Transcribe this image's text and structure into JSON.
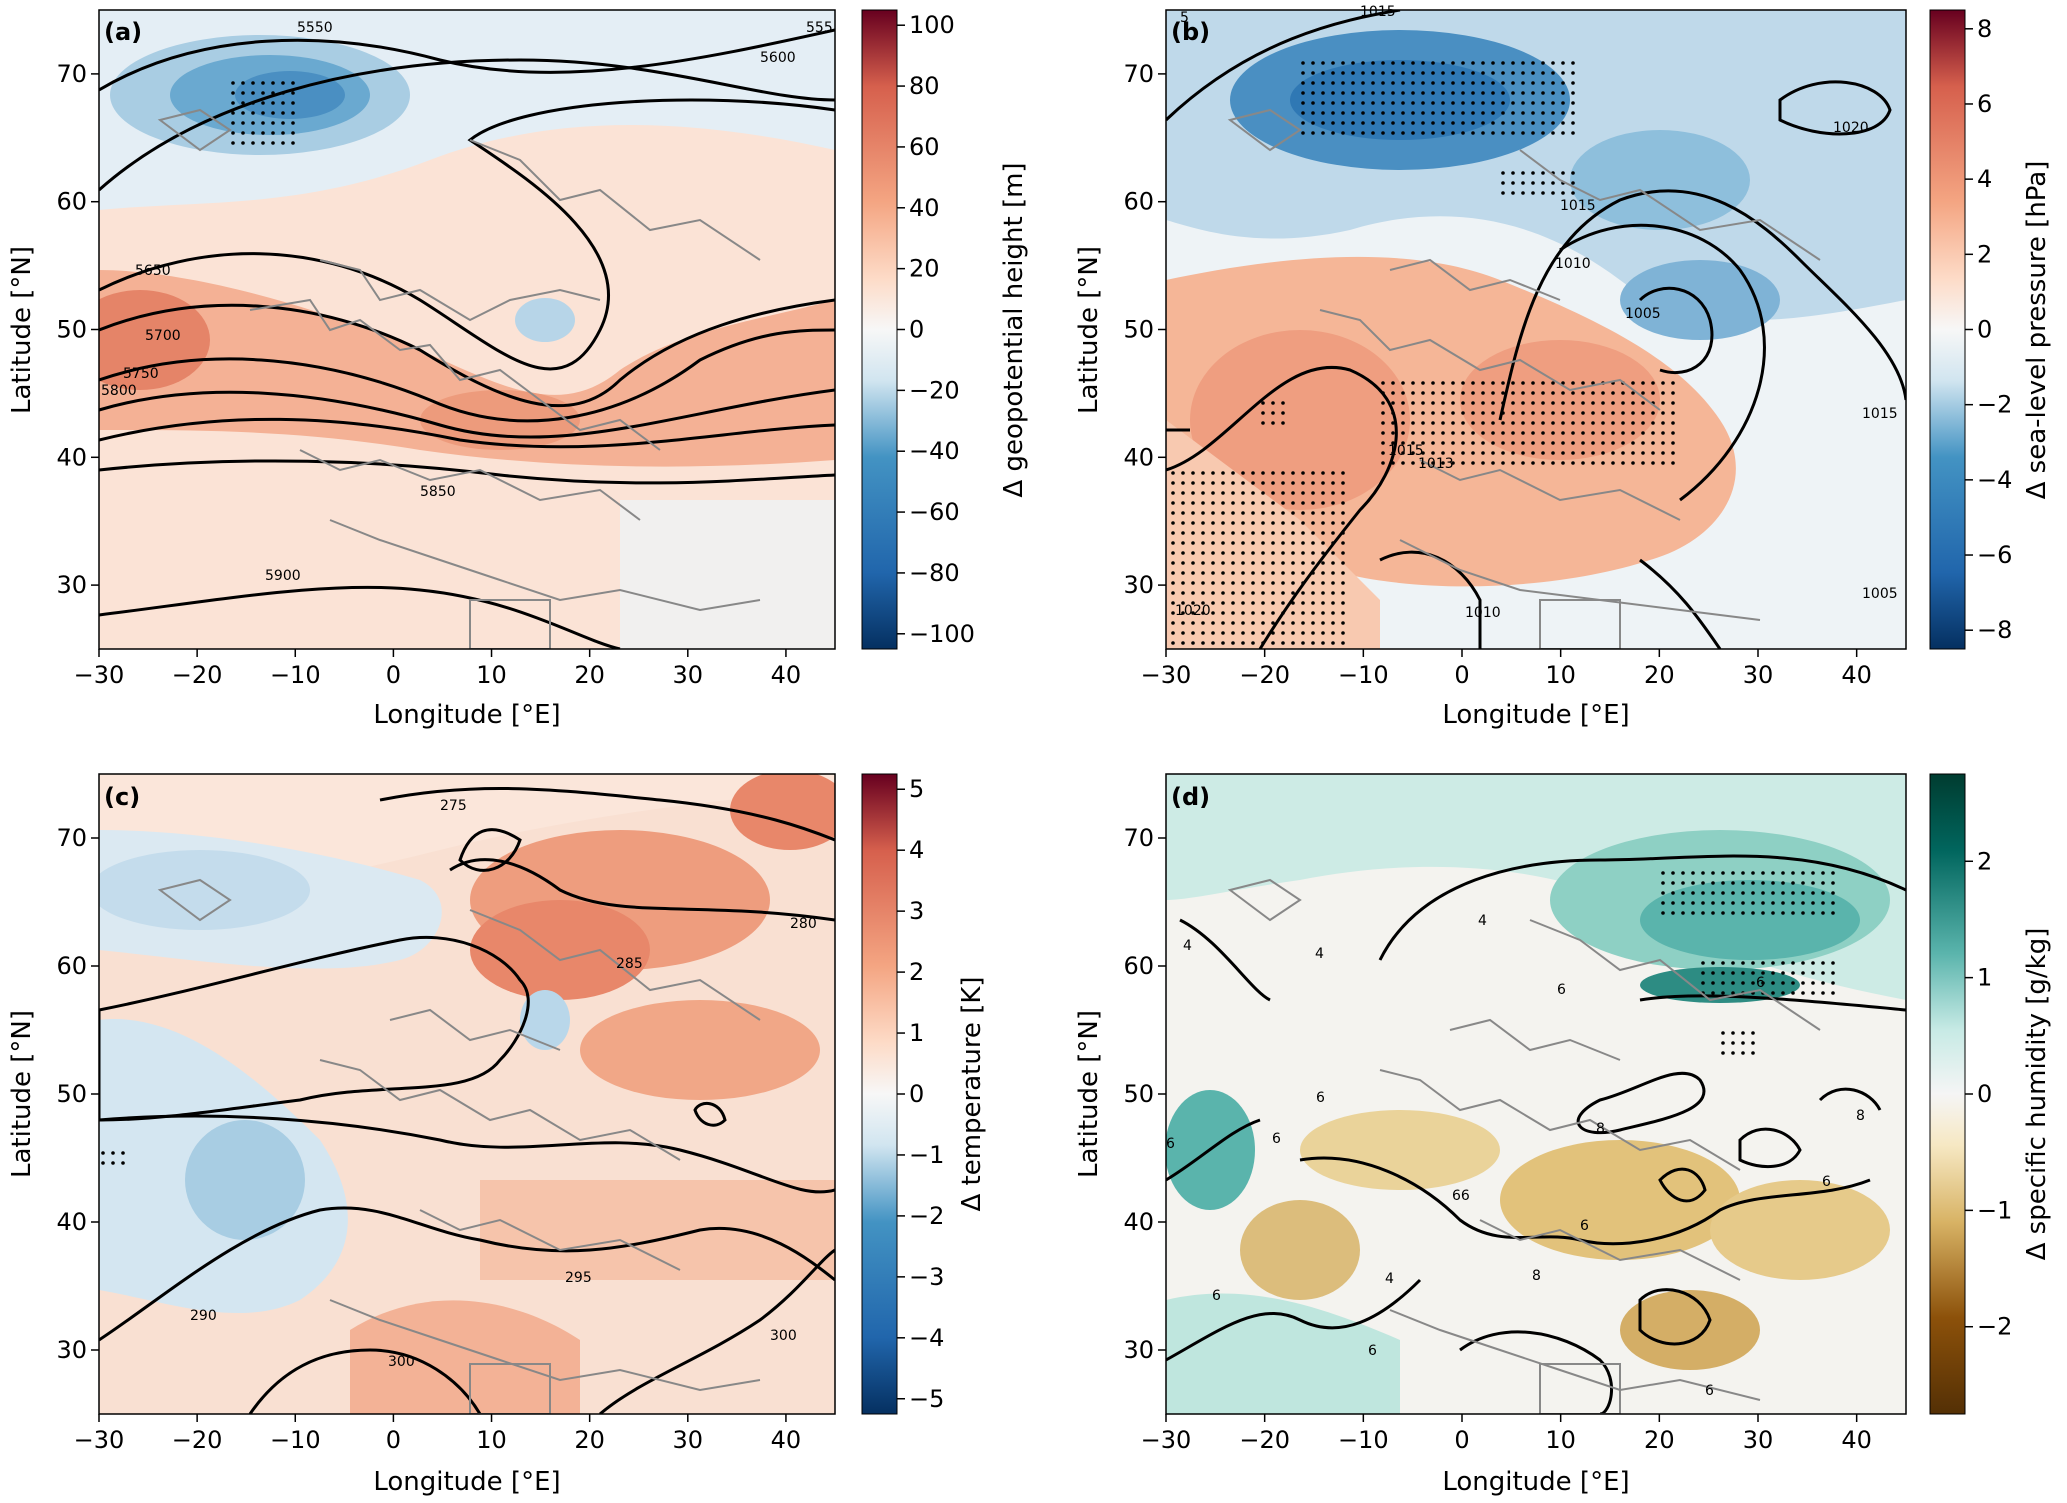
{
  "figure": {
    "panels": [
      {
        "id": "a",
        "label": "(a)",
        "xlabel": "Longitude [°E]",
        "ylabel": "Latitude [°N]",
        "colorbar": {
          "label": "Δ geopotential height [m]",
          "ticks": [
            "100",
            "80",
            "60",
            "40",
            "20",
            "0",
            "−20",
            "−40",
            "−60",
            "−80",
            "−100"
          ],
          "range": [
            -105,
            105
          ],
          "palette": "RdBu_r"
        },
        "contour_labels": [
          "5550",
          "5600",
          "5650",
          "5700",
          "5750",
          "5800",
          "5850",
          "5900",
          "555"
        ],
        "stippling_note": "black dots in significant regions"
      },
      {
        "id": "b",
        "label": "(b)",
        "xlabel": "Longitude [°E]",
        "ylabel": "Latitude [°N]",
        "colorbar": {
          "label": "Δ sea-level pressure [hPa]",
          "ticks": [
            "8",
            "6",
            "4",
            "2",
            "0",
            "−2",
            "−4",
            "−6",
            "−8"
          ],
          "range": [
            -8.5,
            8.5
          ],
          "palette": "RdBu_r"
        },
        "contour_labels": [
          "1020",
          "1015",
          "1010",
          "1005",
          "1015",
          "1013",
          "1015",
          "1020",
          "1010",
          "1005",
          "1015",
          "5"
        ]
      },
      {
        "id": "c",
        "label": "(c)",
        "xlabel": "Longitude [°E]",
        "ylabel": "Latitude [°N]",
        "colorbar": {
          "label": "Δ temperature [K]",
          "ticks": [
            "5",
            "4",
            "3",
            "2",
            "1",
            "0",
            "−1",
            "−2",
            "−3",
            "−4",
            "−5"
          ],
          "range": [
            -5.25,
            5.25
          ],
          "palette": "RdBu_r"
        },
        "contour_labels": [
          "275",
          "280",
          "285",
          "290",
          "295",
          "300",
          "300"
        ]
      },
      {
        "id": "d",
        "label": "(d)",
        "xlabel": "Longitude [°E]",
        "ylabel": "Latitude [°N]",
        "colorbar": {
          "label": "Δ specific humidity [g/kg]",
          "ticks": [
            "2",
            "1",
            "0",
            "−1",
            "−2"
          ],
          "range": [
            -2.75,
            2.75
          ],
          "palette": "BrBG"
        },
        "contour_labels": [
          "4",
          "4",
          "4",
          "6",
          "6",
          "6",
          "6",
          "6",
          "8",
          "8",
          "66",
          "6",
          "6",
          "8",
          "4",
          "6",
          "6",
          "6"
        ]
      }
    ],
    "axes": {
      "x_ticks": [
        "−30",
        "−20",
        "−10",
        "0",
        "10",
        "20",
        "30",
        "40"
      ],
      "x_values": [
        -30,
        -20,
        -10,
        0,
        10,
        20,
        30,
        40
      ],
      "x_range": [
        -30,
        45
      ],
      "y_ticks": [
        "30",
        "40",
        "50",
        "60",
        "70"
      ],
      "y_values": [
        30,
        40,
        50,
        60,
        70
      ],
      "y_range": [
        25,
        75
      ]
    }
  }
}
